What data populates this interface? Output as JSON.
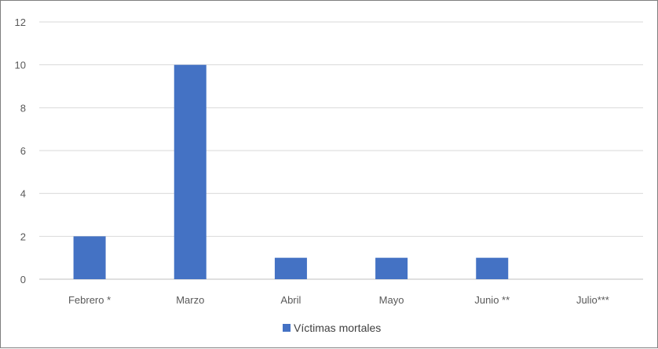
{
  "chart_data": {
    "type": "bar",
    "categories": [
      "Febrero *",
      "Marzo",
      "Abril",
      "Mayo",
      "Junio **",
      "Julio***"
    ],
    "series": [
      {
        "name": "Víctimas mortales",
        "values": [
          2,
          10,
          1,
          1,
          1,
          0
        ],
        "color": "#4472c4"
      }
    ],
    "ylim": [
      0,
      12
    ],
    "yticks": [
      "0",
      "2",
      "4",
      "6",
      "8",
      "10",
      "12"
    ],
    "grid": true,
    "legend_position": "bottom"
  }
}
